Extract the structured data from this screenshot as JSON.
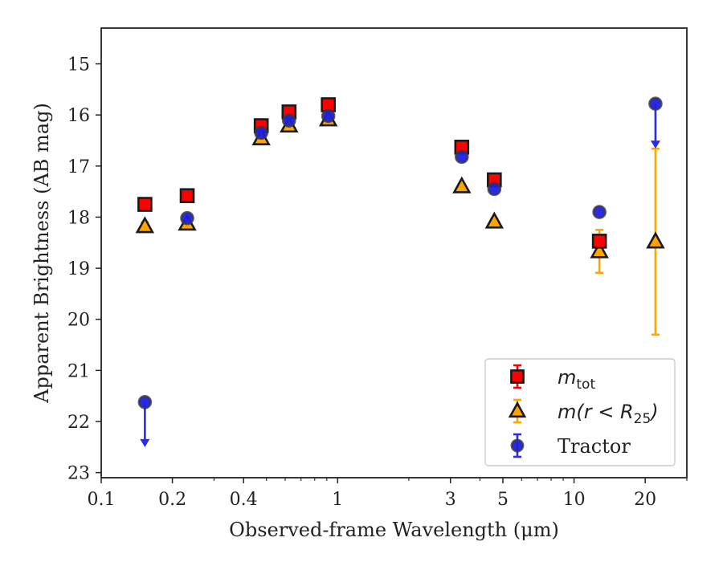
{
  "chart_data": {
    "type": "scatter",
    "xscale": "log",
    "yscale": "linear",
    "yinverted": true,
    "xlim": [
      0.1,
      30
    ],
    "ylim": [
      23.1,
      14.3
    ],
    "xlabel": "Observed-frame Wavelength (μm)",
    "ylabel": "Apparent Brightness (AB mag)",
    "xticks": [
      {
        "value": 0.1,
        "label": "0.1"
      },
      {
        "value": 0.2,
        "label": "0.2"
      },
      {
        "value": 0.4,
        "label": "0.4"
      },
      {
        "value": 1,
        "label": "1"
      },
      {
        "value": 3,
        "label": "3"
      },
      {
        "value": 5,
        "label": "5"
      },
      {
        "value": 10,
        "label": "10"
      },
      {
        "value": 20,
        "label": "20"
      }
    ],
    "yticks": [
      {
        "value": 15,
        "label": "15"
      },
      {
        "value": 16,
        "label": "16"
      },
      {
        "value": 17,
        "label": "17"
      },
      {
        "value": 18,
        "label": "18"
      },
      {
        "value": 19,
        "label": "19"
      },
      {
        "value": 20,
        "label": "20"
      },
      {
        "value": 21,
        "label": "21"
      },
      {
        "value": 22,
        "label": "22"
      },
      {
        "value": 23,
        "label": "23"
      }
    ],
    "legend_position": "lower-right",
    "series": [
      {
        "name": "m_tot",
        "legend_main": "m",
        "legend_sub": "tot",
        "marker": "square",
        "color": "#ff0000",
        "edge": "#1a1a1a",
        "error_color": "#ff0000",
        "points": [
          {
            "x": 0.153,
            "y": 17.75,
            "err": 0.05
          },
          {
            "x": 0.231,
            "y": 17.58,
            "err": 0.04
          },
          {
            "x": 0.475,
            "y": 16.21,
            "err": 0.03
          },
          {
            "x": 0.623,
            "y": 15.94,
            "err": 0.03
          },
          {
            "x": 0.913,
            "y": 15.8,
            "err": 0.03
          },
          {
            "x": 3.35,
            "y": 16.63,
            "err": 0.04
          },
          {
            "x": 4.6,
            "y": 17.27,
            "err": 0.05
          },
          {
            "x": 12.8,
            "y": 18.47,
            "err": 0.08
          }
        ]
      },
      {
        "name": "m(r<R_25)",
        "legend_main": "m(r < R",
        "legend_sub": "25",
        "legend_after": ")",
        "marker": "triangle",
        "color": "#ffa500",
        "edge": "#1a1a1a",
        "error_color": "#ffa500",
        "points": [
          {
            "x": 0.153,
            "y": 18.18,
            "err": 0.08
          },
          {
            "x": 0.231,
            "y": 18.13,
            "err": 0.06
          },
          {
            "x": 0.475,
            "y": 16.46,
            "err": 0.04
          },
          {
            "x": 0.623,
            "y": 16.21,
            "err": 0.04
          },
          {
            "x": 0.913,
            "y": 16.09,
            "err": 0.04
          },
          {
            "x": 3.35,
            "y": 17.4,
            "err": 0.05
          },
          {
            "x": 4.6,
            "y": 18.09,
            "err": 0.06
          },
          {
            "x": 12.8,
            "y": 18.67,
            "err": 0.42
          },
          {
            "x": 22.1,
            "y": 18.48,
            "err_low": 1.82,
            "err_high": 1.82
          }
        ]
      },
      {
        "name": "Tractor",
        "legend_main": "Tractor",
        "marker": "circle",
        "color": "#1f1fdd",
        "edge": "#3a3a3a",
        "error_color": "#2b2be8",
        "points": [
          {
            "x": 0.153,
            "y": 21.62,
            "upper_limit": true
          },
          {
            "x": 0.231,
            "y": 18.02
          },
          {
            "x": 0.475,
            "y": 16.35
          },
          {
            "x": 0.623,
            "y": 16.11
          },
          {
            "x": 0.913,
            "y": 16.02
          },
          {
            "x": 3.35,
            "y": 16.82
          },
          {
            "x": 4.6,
            "y": 17.45
          },
          {
            "x": 12.8,
            "y": 17.9
          },
          {
            "x": 22.1,
            "y": 15.78,
            "upper_limit": true
          }
        ]
      }
    ]
  }
}
